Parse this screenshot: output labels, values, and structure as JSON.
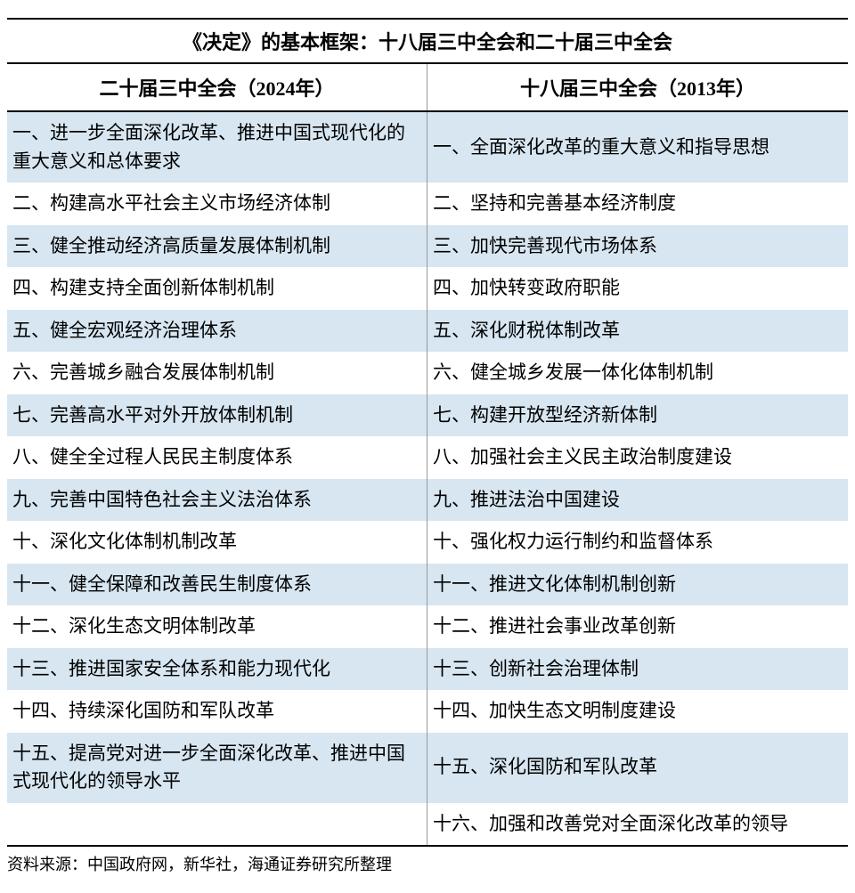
{
  "table": {
    "title": "《决定》的基本框架：十八届三中全会和二十届三中全会",
    "columns": [
      {
        "label": "二十届三中全会（2024年）"
      },
      {
        "label": "十八届三中全会（2013年）"
      }
    ],
    "rows": [
      {
        "left": "一、进一步全面深化改革、推进中国式现代化的重大意义和总体要求",
        "right": "一、全面深化改革的重大意义和指导思想",
        "striped": true
      },
      {
        "left": "二、构建高水平社会主义市场经济体制",
        "right": "二、坚持和完善基本经济制度",
        "striped": false
      },
      {
        "left": "三、健全推动经济高质量发展体制机制",
        "right": "三、加快完善现代市场体系",
        "striped": true
      },
      {
        "left": "四、构建支持全面创新体制机制",
        "right": "四、加快转变政府职能",
        "striped": false
      },
      {
        "left": "五、健全宏观经济治理体系",
        "right": "五、深化财税体制改革",
        "striped": true
      },
      {
        "left": "六、完善城乡融合发展体制机制",
        "right": "六、健全城乡发展一体化体制机制",
        "striped": false
      },
      {
        "left": "七、完善高水平对外开放体制机制",
        "right": "七、构建开放型经济新体制",
        "striped": true
      },
      {
        "left": "八、健全全过程人民民主制度体系",
        "right": "八、加强社会主义民主政治制度建设",
        "striped": false
      },
      {
        "left": "九、完善中国特色社会主义法治体系",
        "right": "九、推进法治中国建设",
        "striped": true
      },
      {
        "left": "十、深化文化体制机制改革",
        "right": "十、强化权力运行制约和监督体系",
        "striped": false
      },
      {
        "left": "十一、健全保障和改善民生制度体系",
        "right": "十一、推进文化体制机制创新",
        "striped": true
      },
      {
        "left": "十二、深化生态文明体制改革",
        "right": "十二、推进社会事业改革创新",
        "striped": false
      },
      {
        "left": "十三、推进国家安全体系和能力现代化",
        "right": "十三、创新社会治理体制",
        "striped": true
      },
      {
        "left": "十四、持续深化国防和军队改革",
        "right": "十四、加快生态文明制度建设",
        "striped": false
      },
      {
        "left": "十五、提高党对进一步全面深化改革、推进中国式现代化的领导水平",
        "right": "十五、深化国防和军队改革",
        "striped": true
      },
      {
        "left": "",
        "right": "十六、加强和改善党对全面深化改革的领导",
        "striped": false
      }
    ],
    "source_label": "资料来源：中国政府网，新华社，海通证券研究所整理",
    "colors": {
      "stripe_bg": "#d7e6f1",
      "text": "#000000",
      "border_heavy": "#000000",
      "border_light": "#999999",
      "background": "#ffffff"
    },
    "typography": {
      "title_fontsize": 22,
      "header_fontsize": 22,
      "cell_fontsize": 21,
      "source_fontsize": 18,
      "font_family": "SimSun"
    }
  }
}
